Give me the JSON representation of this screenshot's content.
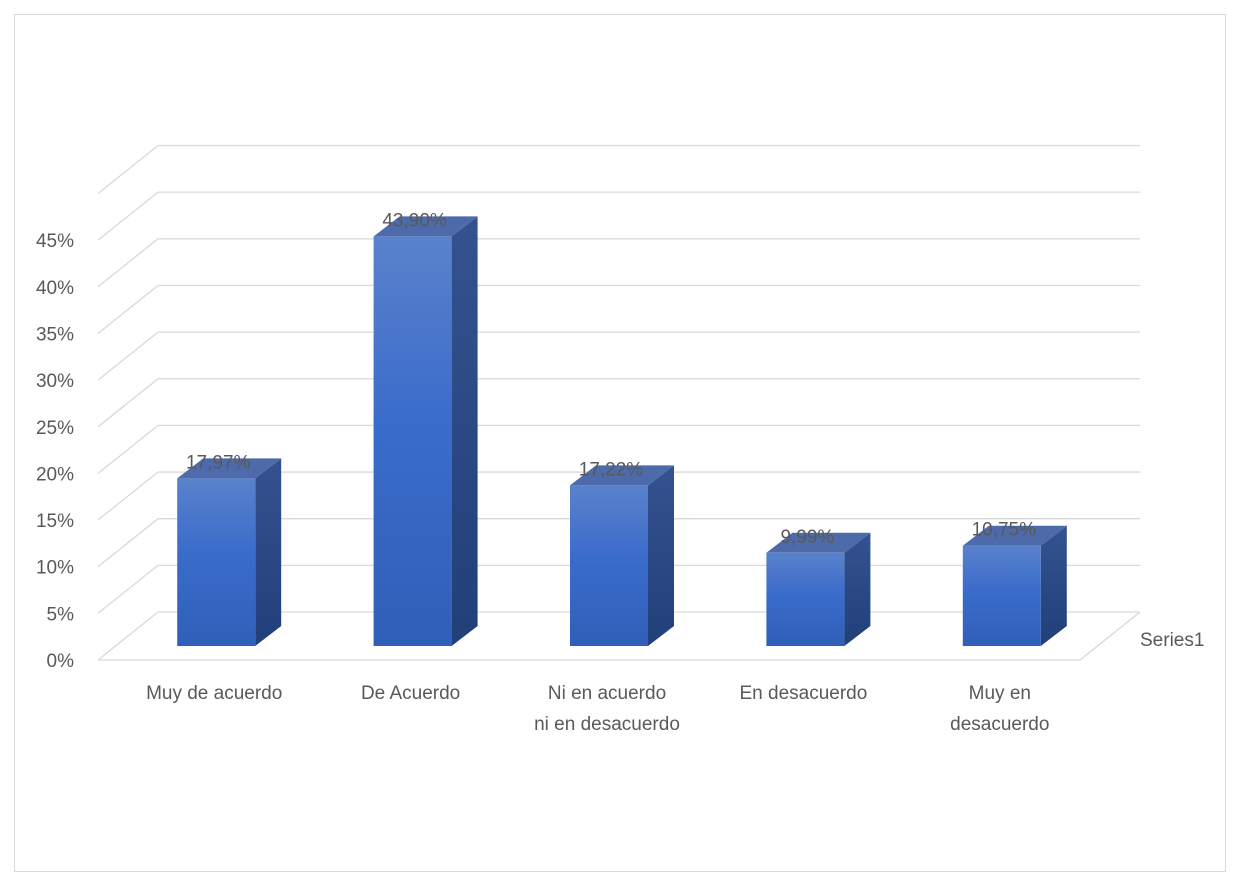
{
  "chart_data": {
    "type": "bar",
    "style": "3d-clustered-column",
    "categories": [
      [
        "Muy de acuerdo"
      ],
      [
        "De Acuerdo"
      ],
      [
        "Ni en acuerdo",
        "ni en desacuerdo"
      ],
      [
        "En desacuerdo"
      ],
      [
        "Muy en",
        "desacuerdo"
      ]
    ],
    "series": [
      {
        "name": "Series1",
        "values": [
          17.97,
          43.9,
          17.22,
          9.99,
          10.75
        ],
        "labels": [
          "17,97%",
          "43,90%",
          "17,22%",
          "9,99%",
          "10,75%"
        ]
      }
    ],
    "y_ticks": [
      "0%",
      "5%",
      "10%",
      "15%",
      "20%",
      "25%",
      "30%",
      "35%",
      "40%",
      "45%"
    ],
    "ylim": [
      0,
      50
    ],
    "grid": true,
    "legend_position": "right",
    "colors": {
      "bar_top": "#5a82cc",
      "bar_bottom": "#2f5fb8",
      "bar_side": "#26427f",
      "bar_cap": "#4d6aaa",
      "grid": "#d9d9d9",
      "text": "#595959"
    }
  }
}
